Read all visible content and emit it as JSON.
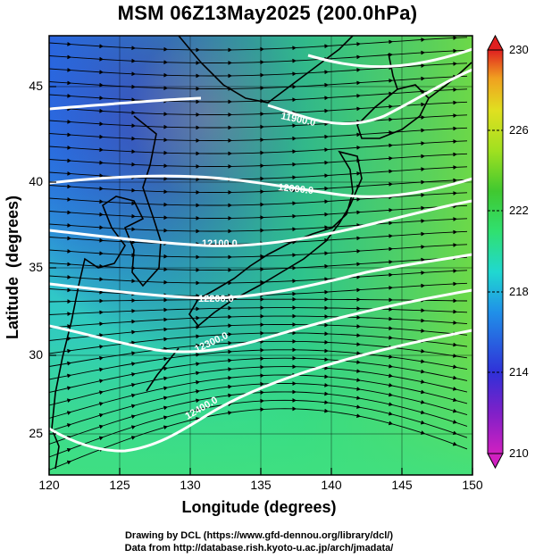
{
  "title": "MSM 06Z13May2025 (200.0hPa)",
  "x_axis": {
    "label": "Longitude (degrees)",
    "ticks": [
      "120",
      "125",
      "130",
      "135",
      "140",
      "145",
      "150"
    ],
    "range": [
      120,
      150
    ]
  },
  "y_axis": {
    "label": "Latitude  (degrees)",
    "ticks": [
      "25",
      "30",
      "35",
      "40",
      "45"
    ],
    "range": [
      22.4,
      47.6
    ]
  },
  "colorbar": {
    "ticks": [
      "210",
      "214",
      "218",
      "222",
      "226",
      "230"
    ],
    "range": [
      210,
      230
    ],
    "colors": [
      "#d020c0",
      "#8020c8",
      "#3030d8",
      "#2090e8",
      "#20d8d0",
      "#30e070",
      "#40c830",
      "#a0e020",
      "#e0e020",
      "#f0a020",
      "#e02020"
    ]
  },
  "contours": [
    {
      "label": "11900.0"
    },
    {
      "label": "12000.0"
    },
    {
      "label": "12100.0"
    },
    {
      "label": "12200.0"
    },
    {
      "label": "12300.0"
    },
    {
      "label": "12400.0"
    }
  ],
  "credits": [
    "Drawing by DCL (https://www.gfd-dennou.org/library/dcl/)",
    "Data from http://database.rish.kyoto-u.ac.jp/arch/jmadata/"
  ]
}
